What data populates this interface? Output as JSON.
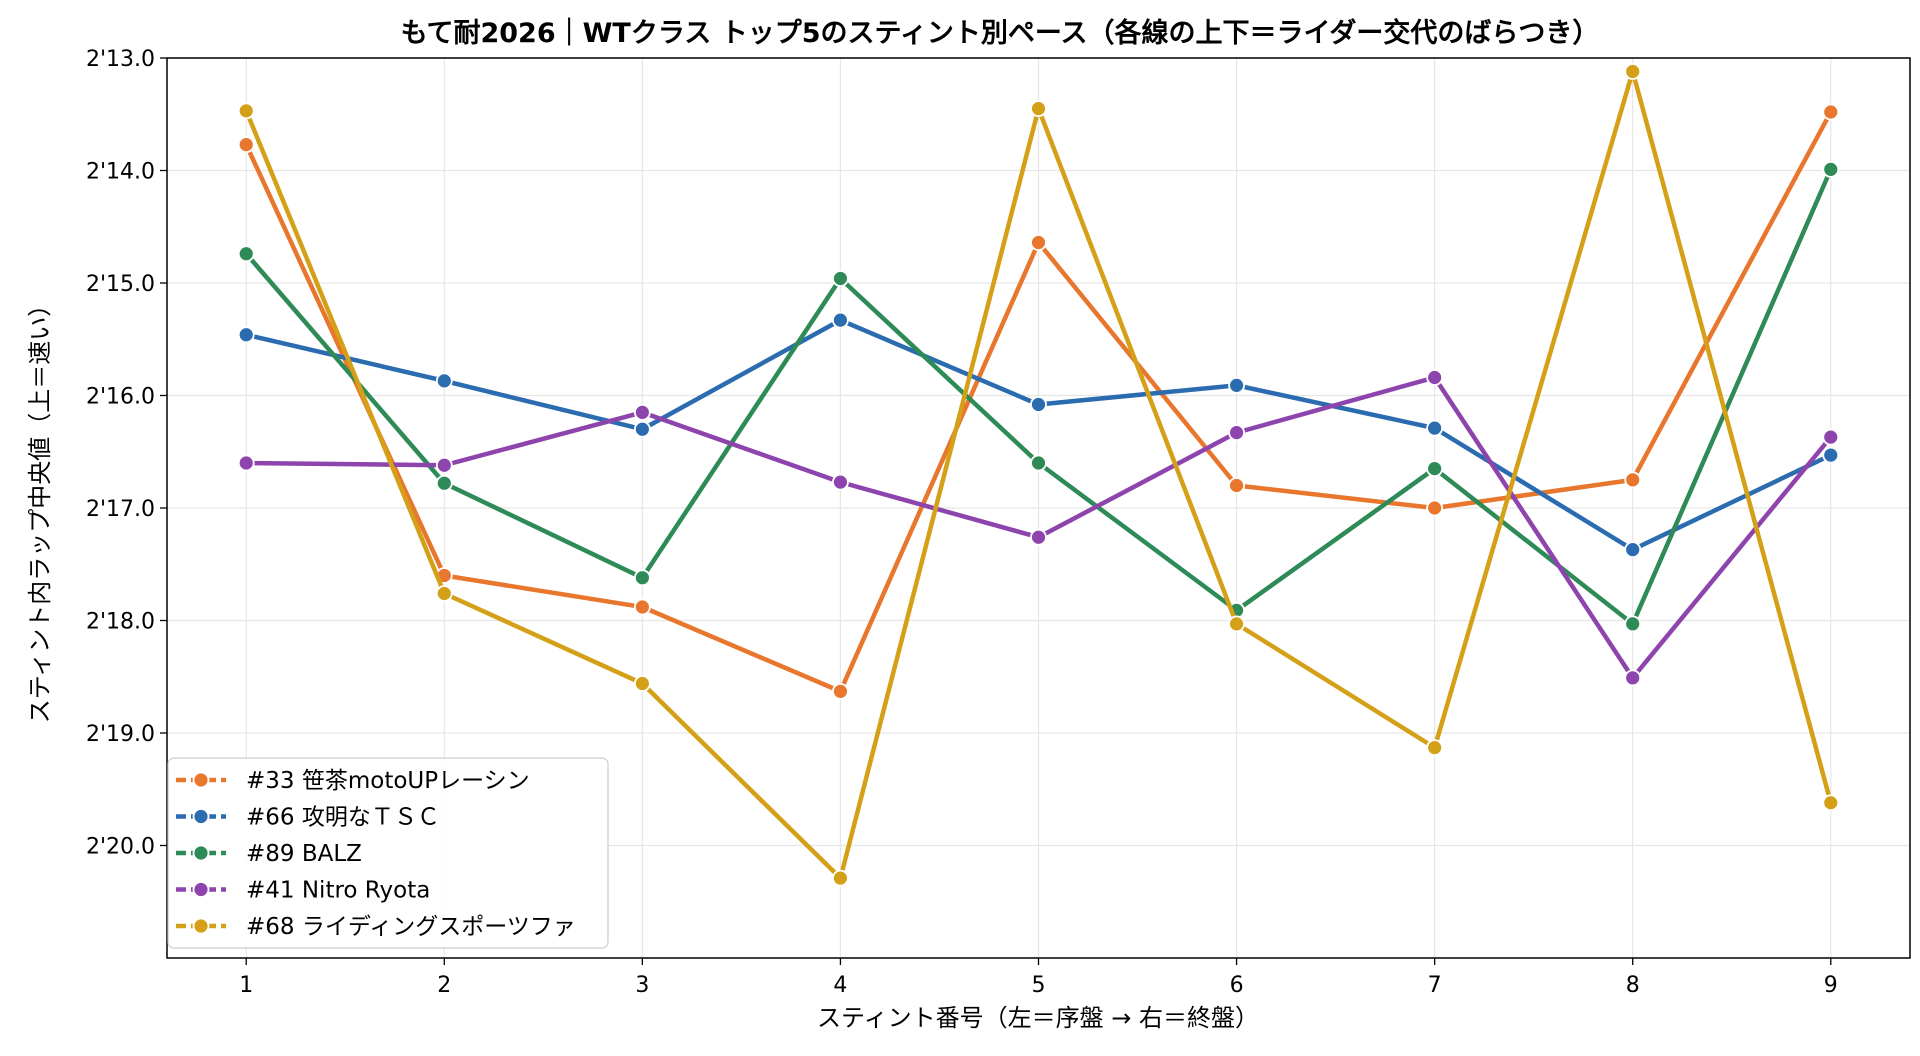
{
  "chart_data": {
    "type": "line",
    "title": "もて耐2026｜WTクラス トップ5のスティント別ペース（各線の上下＝ライダー交代のばらつき）",
    "xlabel": "スティント番号（左＝序盤 → 右＝終盤）",
    "ylabel": "スティント内ラップ中央値（上＝速い）",
    "x": [
      1,
      2,
      3,
      4,
      5,
      6,
      7,
      8,
      9
    ],
    "x_tick_labels": [
      "1",
      "2",
      "3",
      "4",
      "5",
      "6",
      "7",
      "8",
      "9"
    ],
    "xlim": [
      0.6,
      9.4
    ],
    "ylim": [
      133.0,
      141.0
    ],
    "y_inverted": true,
    "y_ticks": [
      133,
      134,
      135,
      136,
      137,
      138,
      139,
      140
    ],
    "y_tick_labels": [
      "2'13.0",
      "2'14.0",
      "2'15.0",
      "2'16.0",
      "2'17.0",
      "2'18.0",
      "2'19.0",
      "2'20.0"
    ],
    "grid": true,
    "legend_position": "lower-left",
    "series": [
      {
        "name": "#33 笹茶motoUPレーシン",
        "color": "#E8762D",
        "values": [
          133.77,
          137.6,
          137.88,
          138.63,
          134.64,
          136.8,
          137.0,
          136.75,
          133.48
        ]
      },
      {
        "name": "#66 攻明なＴＳＣ",
        "color": "#2B6CB0",
        "values": [
          135.46,
          135.87,
          136.3,
          135.33,
          136.08,
          135.91,
          136.29,
          137.37,
          136.53
        ]
      },
      {
        "name": "#89 BALZ",
        "color": "#2E8B57",
        "values": [
          134.74,
          136.78,
          137.62,
          134.96,
          136.6,
          137.91,
          136.65,
          138.03,
          133.99
        ]
      },
      {
        "name": "#41 Nitro Ryota",
        "color": "#8E44AD",
        "values": [
          136.6,
          136.62,
          136.15,
          136.77,
          137.26,
          136.33,
          135.84,
          138.51,
          136.37
        ]
      },
      {
        "name": "#68 ライディングスポーツファ",
        "color": "#D4A017",
        "values": [
          133.47,
          137.76,
          138.56,
          140.29,
          133.45,
          138.03,
          139.13,
          133.12,
          139.62
        ]
      }
    ]
  }
}
